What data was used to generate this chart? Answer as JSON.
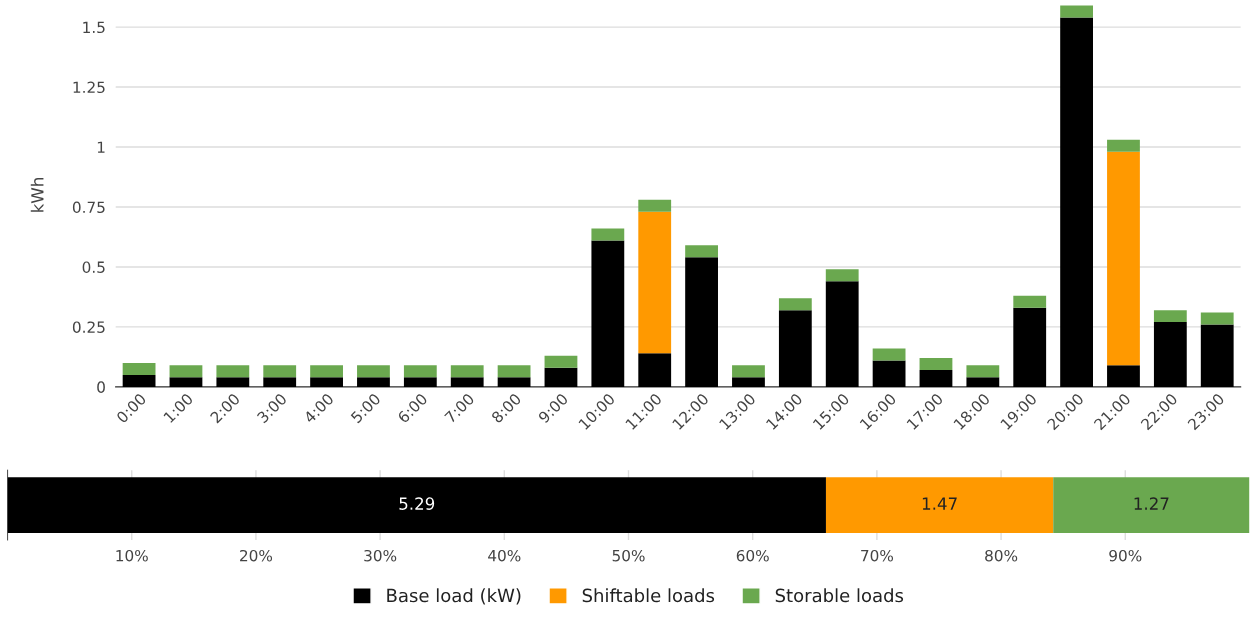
{
  "chart_data": [
    {
      "type": "bar",
      "stacked": true,
      "ylabel": "kWh",
      "categories": [
        "0:00",
        "1:00",
        "2:00",
        "3:00",
        "4:00",
        "5:00",
        "6:00",
        "7:00",
        "8:00",
        "9:00",
        "10:00",
        "11:00",
        "12:00",
        "13:00",
        "14:00",
        "15:00",
        "16:00",
        "17:00",
        "18:00",
        "19:00",
        "20:00",
        "21:00",
        "22:00",
        "23:00"
      ],
      "series": [
        {
          "name": "Base load (kW)",
          "color": "#000000",
          "values": [
            0.05,
            0.04,
            0.04,
            0.04,
            0.04,
            0.04,
            0.04,
            0.04,
            0.04,
            0.08,
            0.61,
            0.14,
            0.54,
            0.04,
            0.32,
            0.44,
            0.11,
            0.07,
            0.04,
            0.33,
            1.54,
            0.09,
            0.27,
            0.26
          ]
        },
        {
          "name": "Shiftable loads",
          "color": "#ff9900",
          "values": [
            0,
            0,
            0,
            0,
            0,
            0,
            0,
            0,
            0,
            0,
            0,
            0.59,
            0,
            0,
            0,
            0,
            0,
            0,
            0,
            0,
            0,
            0.89,
            0,
            0
          ]
        },
        {
          "name": "Storable loads",
          "color": "#6aa84f",
          "values": [
            0.05,
            0.05,
            0.05,
            0.05,
            0.05,
            0.05,
            0.05,
            0.05,
            0.05,
            0.05,
            0.05,
            0.05,
            0.05,
            0.05,
            0.05,
            0.05,
            0.05,
            0.05,
            0.05,
            0.05,
            0.05,
            0.05,
            0.05,
            0.05
          ]
        }
      ],
      "ylim": [
        0,
        1.6
      ],
      "yticks": [
        0,
        0.25,
        0.5,
        0.75,
        1,
        1.25,
        1.5
      ],
      "grid": "y",
      "legend": "bottom"
    },
    {
      "type": "bar",
      "stacked": true,
      "orientation": "horizontal",
      "categories": [
        null
      ],
      "series": [
        {
          "color": "#000000",
          "values": [
            65.9
          ]
        },
        {
          "color": "#ff9900",
          "values": [
            18.3
          ]
        },
        {
          "color": "#6aa84f",
          "values": [
            15.8
          ]
        }
      ],
      "annotations": [
        "5.29",
        "1.47",
        "1.27"
      ],
      "xlim": [
        0,
        100
      ],
      "xticks": [
        {
          "value": 10,
          "label": "10%"
        },
        {
          "value": 20,
          "label": "20%"
        },
        {
          "value": 30,
          "label": "30%"
        },
        {
          "value": 40,
          "label": "40%"
        },
        {
          "value": 50,
          "label": "50%"
        },
        {
          "value": 60,
          "label": "60%"
        },
        {
          "value": 70,
          "label": "70%"
        },
        {
          "value": 80,
          "label": "80%"
        },
        {
          "value": 90,
          "label": "90%"
        }
      ],
      "grid": "x",
      "tick_labels": "x"
    }
  ]
}
